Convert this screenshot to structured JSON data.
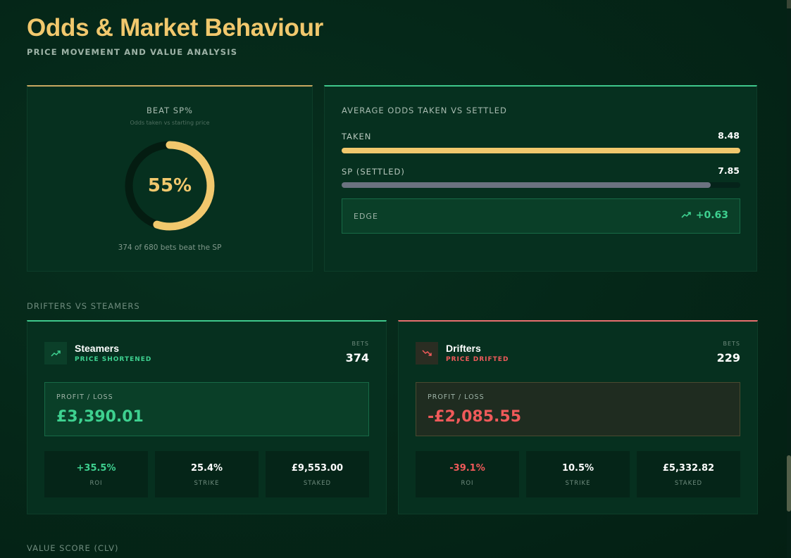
{
  "header": {
    "title": "Odds & Market Behaviour",
    "subtitle": "PRICE MOVEMENT AND VALUE ANALYSIS"
  },
  "beat_sp": {
    "label": "BEAT SP%",
    "sublabel": "Odds taken vs starting price",
    "value": "55%",
    "percent": 55,
    "footer": "374 of 680 bets beat the SP"
  },
  "avg_odds": {
    "title": "AVERAGE ODDS TAKEN VS SETTLED",
    "taken_label": "TAKEN",
    "taken_value": "8.48",
    "taken_fill": 1.0,
    "sp_label": "SP (SETTLED)",
    "sp_value": "7.85",
    "sp_fill": 0.926,
    "edge_label": "EDGE",
    "edge_value": "+0.63"
  },
  "sections": {
    "drifters_vs_steamers": "DRIFTERS VS STEAMERS",
    "value_score": "VALUE SCORE (CLV)"
  },
  "steamers": {
    "name": "Steamers",
    "tag": "PRICE SHORTENED",
    "bets_label": "BETS",
    "bets": "374",
    "pl_label": "PROFIT / LOSS",
    "pl_value": "£3,390.01",
    "roi": "+35.5%",
    "roi_label": "ROI",
    "strike": "25.4%",
    "strike_label": "STRIKE",
    "staked": "£9,553.00",
    "staked_label": "STAKED"
  },
  "drifters": {
    "name": "Drifters",
    "tag": "PRICE DRIFTED",
    "bets_label": "BETS",
    "bets": "229",
    "pl_label": "PROFIT / LOSS",
    "pl_value": "-£2,085.55",
    "roi": "-39.1%",
    "roi_label": "ROI",
    "strike": "10.5%",
    "strike_label": "STRIKE",
    "staked": "£5,332.82",
    "staked_label": "STAKED"
  },
  "colors": {
    "gold": "#f1c86d",
    "green": "#3ed190",
    "red": "#f05a5a",
    "sp_bar": "#6b7280"
  },
  "icons": [
    "trending-up-icon",
    "trending-down-icon"
  ]
}
